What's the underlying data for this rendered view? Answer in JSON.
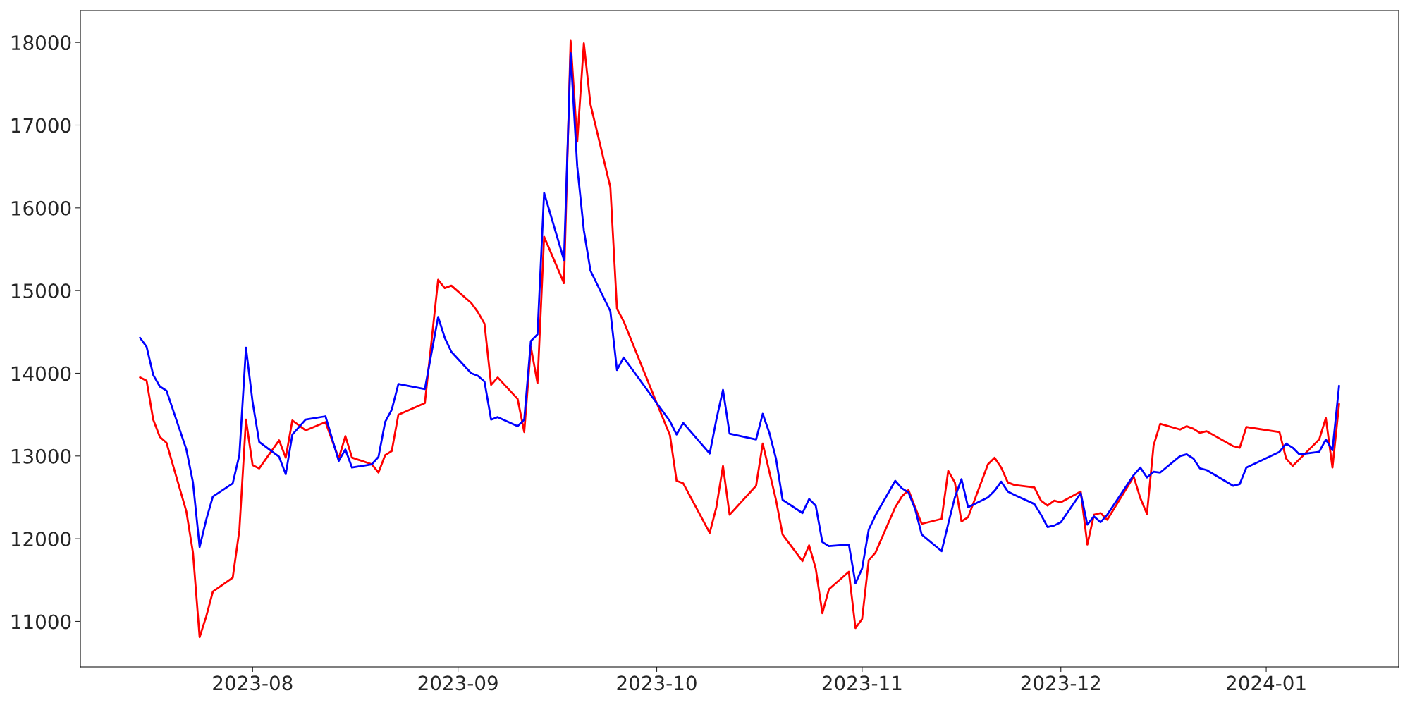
{
  "chart_data": {
    "type": "line",
    "x": [
      "2023-07-15",
      "2023-07-16",
      "2023-07-17",
      "2023-07-18",
      "2023-07-19",
      "2023-07-22",
      "2023-07-23",
      "2023-07-24",
      "2023-07-25",
      "2023-07-26",
      "2023-07-29",
      "2023-07-30",
      "2023-07-31",
      "2023-08-01",
      "2023-08-02",
      "2023-08-05",
      "2023-08-06",
      "2023-08-07",
      "2023-08-09",
      "2023-08-12",
      "2023-08-14",
      "2023-08-15",
      "2023-08-16",
      "2023-08-19",
      "2023-08-20",
      "2023-08-21",
      "2023-08-22",
      "2023-08-23",
      "2023-08-27",
      "2023-08-29",
      "2023-08-30",
      "2023-08-31",
      "2023-09-03",
      "2023-09-04",
      "2023-09-05",
      "2023-09-06",
      "2023-09-07",
      "2023-09-10",
      "2023-09-11",
      "2023-09-12",
      "2023-09-13",
      "2023-09-14",
      "2023-09-17",
      "2023-09-18",
      "2023-09-19",
      "2023-09-20",
      "2023-09-21",
      "2023-09-24",
      "2023-09-25",
      "2023-09-26",
      "2023-10-01",
      "2023-10-03",
      "2023-10-04",
      "2023-10-05",
      "2023-10-09",
      "2023-10-10",
      "2023-10-11",
      "2023-10-12",
      "2023-10-16",
      "2023-10-17",
      "2023-10-18",
      "2023-10-19",
      "2023-10-20",
      "2023-10-23",
      "2023-10-24",
      "2023-10-25",
      "2023-10-26",
      "2023-10-27",
      "2023-10-30",
      "2023-10-31",
      "2023-11-01",
      "2023-11-02",
      "2023-11-03",
      "2023-11-06",
      "2023-11-07",
      "2023-11-08",
      "2023-11-09",
      "2023-11-10",
      "2023-11-13",
      "2023-11-14",
      "2023-11-15",
      "2023-11-16",
      "2023-11-17",
      "2023-11-20",
      "2023-11-21",
      "2023-11-22",
      "2023-11-23",
      "2023-11-24",
      "2023-11-27",
      "2023-11-28",
      "2023-11-29",
      "2023-11-30",
      "2023-12-01",
      "2023-12-04",
      "2023-12-05",
      "2023-12-06",
      "2023-12-07",
      "2023-12-08",
      "2023-12-12",
      "2023-12-13",
      "2023-12-14",
      "2023-12-15",
      "2023-12-16",
      "2023-12-19",
      "2023-12-20",
      "2023-12-21",
      "2023-12-22",
      "2023-12-23",
      "2023-12-27",
      "2023-12-28",
      "2023-12-29",
      "2024-01-03",
      "2024-01-04",
      "2024-01-05",
      "2024-01-06",
      "2024-01-07",
      "2024-01-09",
      "2024-01-10",
      "2024-01-11",
      "2024-01-12"
    ],
    "series": [
      {
        "color": "#ff0000",
        "values": [
          13950,
          13910,
          13440,
          13230,
          13160,
          12330,
          11830,
          10810,
          11060,
          11360,
          11530,
          12100,
          13440,
          12890,
          12850,
          13190,
          12980,
          13430,
          13310,
          13410,
          12970,
          13240,
          12980,
          12900,
          12800,
          13010,
          13060,
          13500,
          13640,
          15130,
          15030,
          15060,
          14850,
          14740,
          14600,
          13860,
          13950,
          13690,
          13290,
          14320,
          13880,
          15650,
          15090,
          18020,
          16800,
          17990,
          17250,
          16250,
          14780,
          14630,
          13640,
          13250,
          12700,
          12670,
          12070,
          12380,
          12880,
          12290,
          12640,
          13150,
          12810,
          12470,
          12050,
          11730,
          11920,
          11640,
          11100,
          11390,
          11600,
          10920,
          11030,
          11740,
          11830,
          12380,
          12510,
          12590,
          12380,
          12180,
          12240,
          12820,
          12680,
          12210,
          12260,
          12900,
          12980,
          12860,
          12680,
          12650,
          12620,
          12460,
          12400,
          12460,
          12440,
          12570,
          11930,
          12290,
          12310,
          12230,
          12750,
          12490,
          12300,
          13130,
          13390,
          13320,
          13360,
          13330,
          13280,
          13300,
          13120,
          13100,
          13350,
          13290,
          12970,
          12880,
          12960,
          13040,
          13200,
          13460,
          12860,
          13630
        ]
      },
      {
        "color": "#0000ff",
        "values": [
          14430,
          14320,
          13980,
          13840,
          13790,
          13080,
          12680,
          11900,
          12230,
          12510,
          12670,
          13010,
          14310,
          13650,
          13170,
          12990,
          12780,
          13260,
          13440,
          13480,
          12940,
          13080,
          12860,
          12900,
          12990,
          13410,
          13560,
          13870,
          13810,
          14680,
          14430,
          14260,
          14000,
          13970,
          13900,
          13440,
          13470,
          13360,
          13440,
          14390,
          14470,
          16180,
          15370,
          17870,
          16500,
          15730,
          15240,
          14750,
          14040,
          14190,
          13640,
          13420,
          13260,
          13400,
          13030,
          13440,
          13800,
          13270,
          13200,
          13510,
          13280,
          12970,
          12470,
          12310,
          12480,
          12400,
          11960,
          11910,
          11930,
          11460,
          11640,
          12110,
          12280,
          12700,
          12610,
          12560,
          12360,
          12050,
          11850,
          12180,
          12500,
          12720,
          12380,
          12500,
          12580,
          12690,
          12570,
          12530,
          12420,
          12290,
          12140,
          12160,
          12200,
          12550,
          12170,
          12270,
          12200,
          12290,
          12770,
          12860,
          12740,
          12810,
          12800,
          13000,
          13020,
          12970,
          12850,
          12830,
          12640,
          12660,
          12860,
          13050,
          13150,
          13100,
          13020,
          13030,
          13050,
          13200,
          13070,
          13850
        ]
      }
    ],
    "xlim": [
      "2023-07-06",
      "2024-01-21"
    ],
    "xticks": [
      {
        "value": "2023-08-01",
        "label": "2023-08"
      },
      {
        "value": "2023-09-01",
        "label": "2023-09"
      },
      {
        "value": "2023-10-01",
        "label": "2023-10"
      },
      {
        "value": "2023-11-01",
        "label": "2023-11"
      },
      {
        "value": "2023-12-01",
        "label": "2023-12"
      },
      {
        "value": "2024-01-01",
        "label": "2024-01"
      }
    ],
    "ylim": [
      10450,
      18385
    ],
    "yticks": [
      11000,
      12000,
      13000,
      14000,
      15000,
      16000,
      17000,
      18000
    ],
    "grid": false
  }
}
